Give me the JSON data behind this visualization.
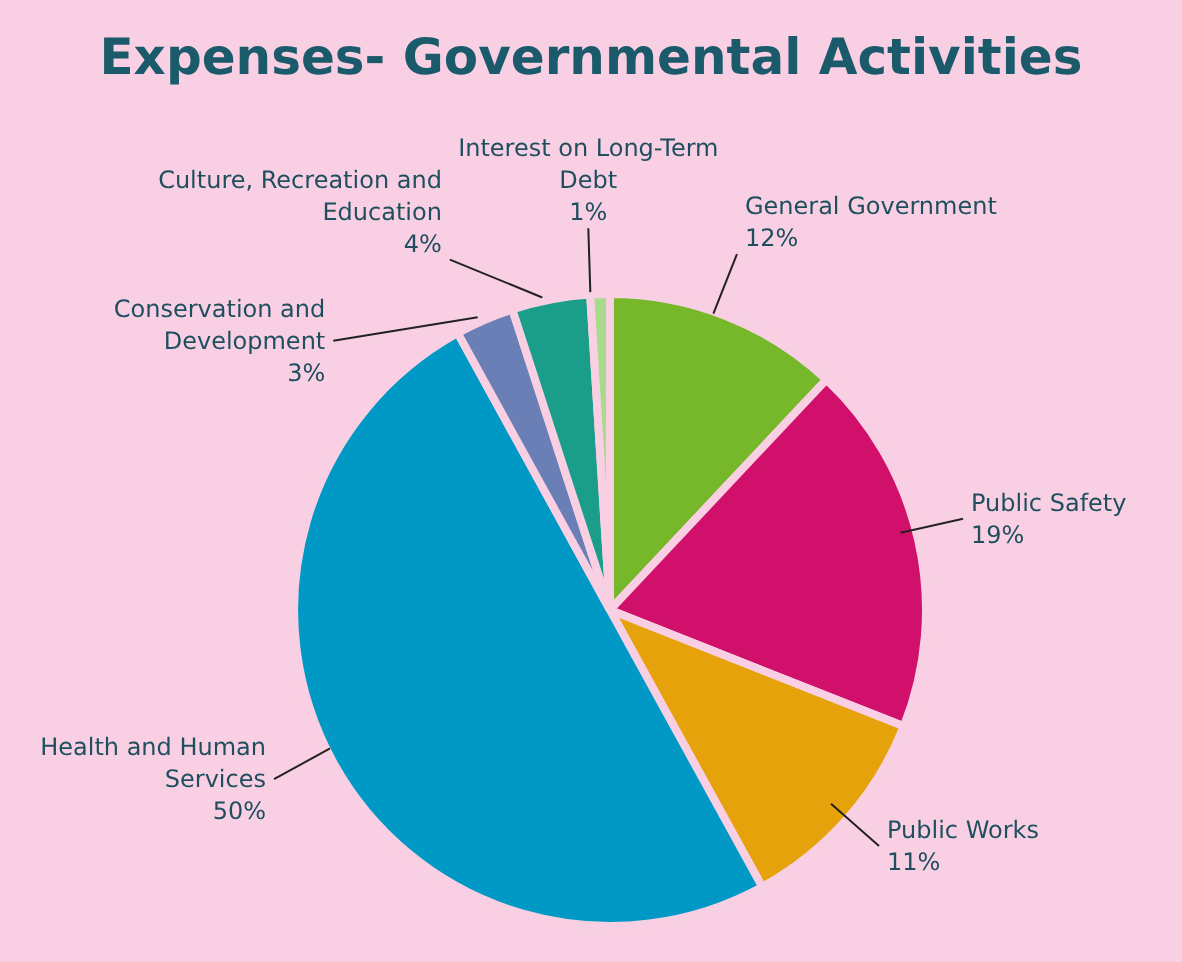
{
  "chart_data": {
    "type": "pie",
    "title": "Expenses- Governmental Activities",
    "categories": [
      "General Government",
      "Public Safety",
      "Public Works",
      "Health and Human Services",
      "Conservation and Development",
      "Culture, Recreation and Education",
      "Interest on Long-Term Debt"
    ],
    "values": [
      12,
      19,
      11,
      50,
      3,
      4,
      1
    ],
    "value_labels": [
      "12%",
      "19%",
      "11%",
      "50%",
      "3%",
      "4%",
      "1%"
    ],
    "colors": [
      "#76b82a",
      "#d0106b",
      "#e6a20a",
      "#0099c6",
      "#6a7fb5",
      "#1a9e8a",
      "#a8dc8c"
    ],
    "legend": false
  }
}
